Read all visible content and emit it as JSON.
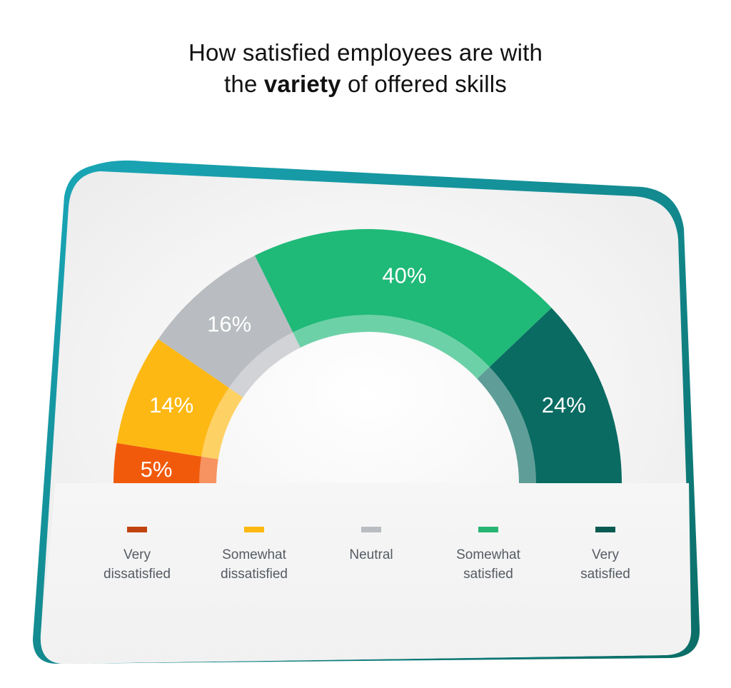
{
  "title": {
    "line1": "How satisfied employees are with",
    "line2_before": "the ",
    "line2_bold": "variety",
    "line2_after": " of offered skills"
  },
  "chart_data": {
    "type": "pie",
    "style": "semi-donut gauge",
    "categories": [
      "Very dissatisfied",
      "Somewhat dissatisfied",
      "Neutral",
      "Somewhat satisfied",
      "Very satisfied"
    ],
    "values": [
      5,
      14,
      16,
      40,
      24
    ],
    "labels": [
      "5%",
      "14%",
      "16%",
      "40%",
      "24%"
    ],
    "colors": [
      "#f15a0b",
      "#fdb813",
      "#b9bcc0",
      "#1fb978",
      "#0a6b62"
    ],
    "legend_position": "bottom"
  },
  "legend": [
    {
      "label": "Very\ndissatisfied",
      "color": "#c1440e"
    },
    {
      "label": "Somewhat\ndissatisfied",
      "color": "#fdb813"
    },
    {
      "label": "Neutral",
      "color": "#b9bcc0"
    },
    {
      "label": "Somewhat\nsatisfied",
      "color": "#27b573"
    },
    {
      "label": "Very\nsatisfied",
      "color": "#0b5a52"
    }
  ]
}
